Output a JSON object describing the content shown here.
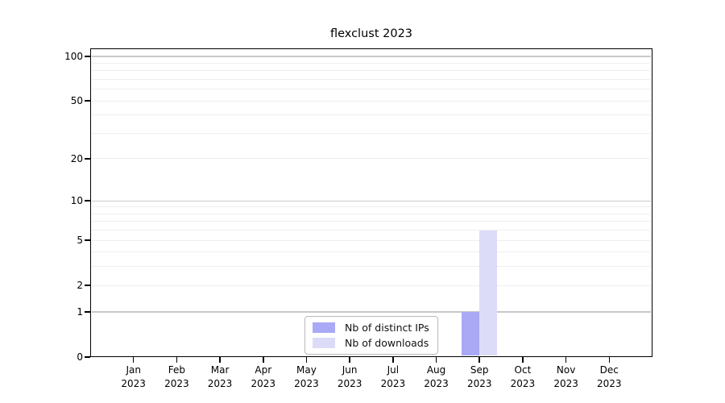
{
  "chart_data": {
    "type": "bar",
    "title": "flexclust 2023",
    "scale": "log1p",
    "categories": [
      "Jan",
      "Feb",
      "Mar",
      "Apr",
      "May",
      "Jun",
      "Jul",
      "Aug",
      "Sep",
      "Oct",
      "Nov",
      "Dec"
    ],
    "year_label": "2023",
    "series": [
      {
        "name": "Nb of distinct IPs",
        "color": "#a9a9f5",
        "values": [
          0,
          0,
          0,
          0,
          0,
          0,
          0,
          0,
          1,
          0,
          0,
          0
        ]
      },
      {
        "name": "Nb of downloads",
        "color": "#dcdcf8",
        "values": [
          0,
          0,
          0,
          0,
          0,
          0,
          0,
          0,
          6,
          0,
          0,
          0
        ]
      }
    ],
    "y_ticks": [
      0,
      1,
      2,
      5,
      10,
      20,
      50,
      100
    ],
    "grid_major": [
      1,
      10,
      100
    ],
    "grid_minor": [
      2,
      3,
      4,
      5,
      6,
      7,
      8,
      9,
      20,
      30,
      40,
      50,
      60,
      70,
      80,
      90
    ],
    "ylim": [
      0,
      100
    ],
    "grid_on": true,
    "legend_position": "bottom-center"
  },
  "colors": {
    "bar_distinct_ips": "#a9a9f5",
    "bar_downloads": "#dcdcf8",
    "grid_major": "#c8c8c8",
    "grid_minor": "#efefef",
    "axis": "#000000",
    "legend_border": "#b9b9b9",
    "background": "#ffffff"
  }
}
